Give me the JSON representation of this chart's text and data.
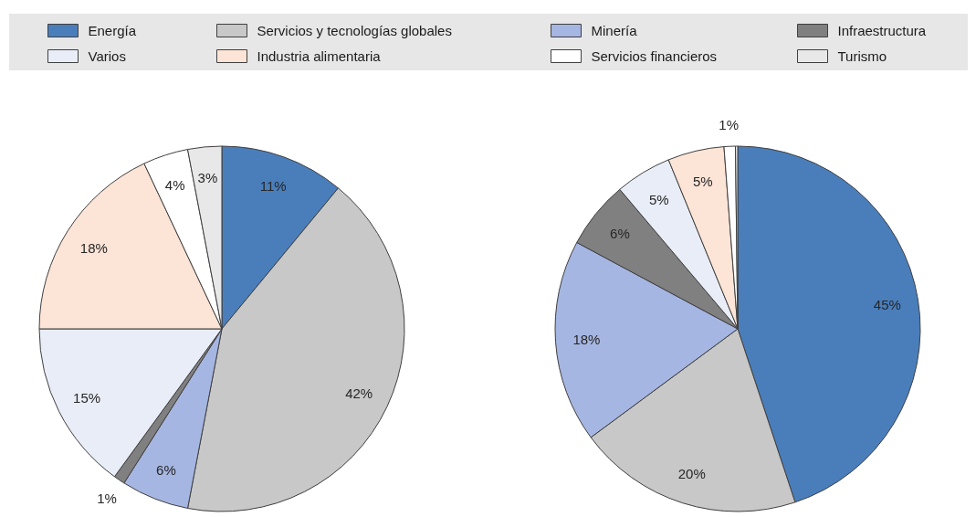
{
  "chart_data": {
    "type": "pie",
    "categories": [
      "Energía",
      "Servicios y tecnologías globales",
      "Minería",
      "Infraestructura",
      "Varios",
      "Industria alimentaria",
      "Servicios financieros",
      "Turismo"
    ],
    "colors": [
      "#4a7ebb",
      "#c8c8c8",
      "#a6b6e2",
      "#808080",
      "#e9edf7",
      "#fce4d6",
      "#ffffff",
      "#e8e8e8"
    ],
    "legend": "top",
    "series": [
      {
        "values": [
          11,
          42,
          6,
          1,
          15,
          18,
          4,
          3
        ],
        "value_labels": [
          "11%",
          "42%",
          "6%",
          "1%",
          "15%",
          "18%",
          "4%",
          "3%"
        ]
      },
      {
        "values": [
          45,
          20,
          18,
          6,
          5,
          5,
          1,
          0.2
        ],
        "value_labels": [
          "45%",
          "20%",
          "18%",
          "6%",
          "5%",
          "5%",
          "1%",
          null
        ]
      }
    ]
  }
}
